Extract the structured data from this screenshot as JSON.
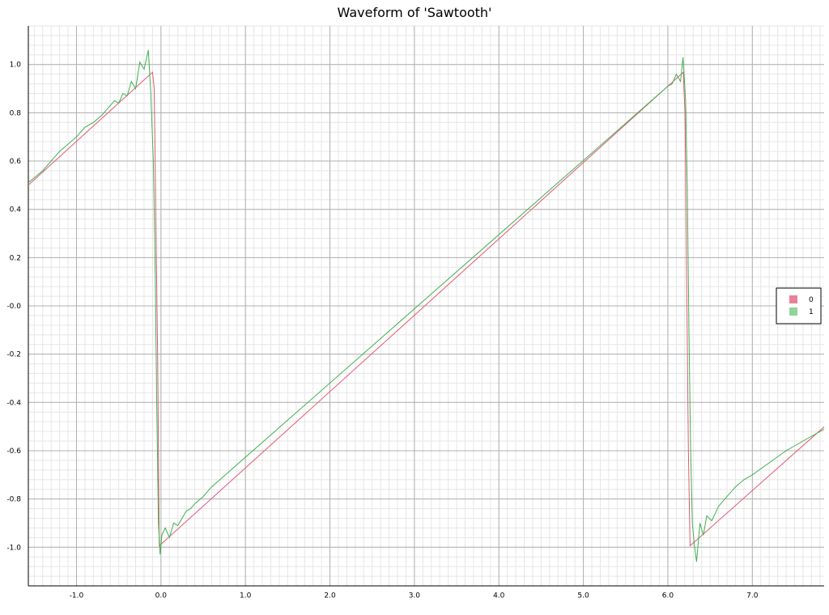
{
  "chart_data": {
    "type": "line",
    "title": "Waveform of 'Sawtooth'",
    "xlabel": "",
    "ylabel": "",
    "xlim": [
      -1.57,
      7.85
    ],
    "ylim": [
      -1.16,
      1.16
    ],
    "x_ticks": [
      -1.0,
      0.0,
      1.0,
      2.0,
      3.0,
      4.0,
      5.0,
      6.0,
      7.0
    ],
    "x_tick_labels": [
      "-1.0",
      "0.0",
      "1.0",
      "2.0",
      "3.0",
      "4.0",
      "5.0",
      "6.0",
      "7.0"
    ],
    "y_ticks": [
      1.0,
      0.8,
      0.6,
      0.4,
      0.2,
      0.0,
      -0.2,
      -0.4,
      -0.6,
      -0.8,
      -1.0
    ],
    "y_tick_labels": [
      "1.0",
      "0.8",
      "0.6",
      "0.4",
      "0.2",
      "-0.0",
      "-0.2",
      "-0.4",
      "-0.6",
      "-0.8",
      "-1.0"
    ],
    "grid": true,
    "legend_position": "right",
    "series": [
      {
        "name": "0",
        "color": "#e05a74",
        "legend_color": "#e8829a",
        "x": [
          -1.571,
          -0.1,
          -0.08,
          -0.04,
          -0.02,
          6.183,
          6.203,
          6.243,
          6.263,
          7.854
        ],
        "y": [
          0.5,
          0.968,
          0.9,
          -0.2,
          -0.994,
          0.968,
          0.8,
          -0.6,
          -0.994,
          -0.5
        ]
      },
      {
        "name": "1",
        "color": "#3fb04f",
        "legend_color": "#8fd49a",
        "x": [
          -1.571,
          -1.4,
          -1.2,
          -1.0,
          -0.9,
          -0.8,
          -0.7,
          -0.6,
          -0.55,
          -0.5,
          -0.45,
          -0.4,
          -0.35,
          -0.3,
          -0.25,
          -0.2,
          -0.15,
          -0.12,
          -0.09,
          -0.07,
          -0.05,
          -0.03,
          -0.01,
          0.01,
          0.05,
          0.1,
          0.15,
          0.2,
          0.25,
          0.3,
          0.35,
          0.4,
          0.5,
          0.6,
          6.0,
          6.05,
          6.1,
          6.15,
          6.18,
          6.21,
          6.23,
          6.25,
          6.27,
          6.29,
          6.31,
          6.34,
          6.38,
          6.42,
          6.46,
          6.52,
          6.6,
          6.7,
          6.8,
          6.9,
          7.0,
          7.2,
          7.4,
          7.6,
          7.854
        ],
        "y": [
          0.51,
          0.56,
          0.64,
          0.7,
          0.74,
          0.76,
          0.79,
          0.83,
          0.85,
          0.84,
          0.88,
          0.87,
          0.93,
          0.9,
          1.01,
          0.98,
          1.06,
          0.88,
          0.6,
          0.2,
          -0.4,
          -0.9,
          -1.03,
          -0.95,
          -0.92,
          -0.96,
          -0.9,
          -0.91,
          -0.88,
          -0.85,
          -0.84,
          -0.82,
          -0.79,
          -0.75,
          0.91,
          0.92,
          0.96,
          0.93,
          1.03,
          0.85,
          0.5,
          -0.1,
          -0.6,
          -0.9,
          -0.98,
          -1.06,
          -0.9,
          -0.95,
          -0.87,
          -0.89,
          -0.83,
          -0.79,
          -0.75,
          -0.72,
          -0.7,
          -0.65,
          -0.6,
          -0.56,
          -0.51
        ]
      }
    ]
  }
}
